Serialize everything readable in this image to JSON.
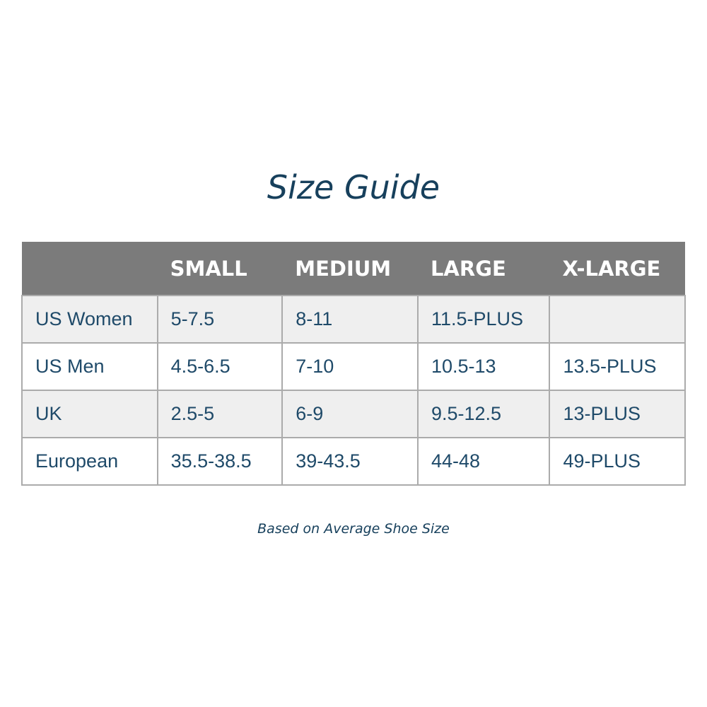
{
  "title": "Size Guide",
  "table": {
    "headers": [
      "",
      "SMALL",
      "MEDIUM",
      "LARGE",
      "X-LARGE"
    ],
    "rows": [
      [
        "US Women",
        "5-7.5",
        "8-11",
        "11.5-PLUS",
        ""
      ],
      [
        "US Men",
        "4.5-6.5",
        "7-10",
        "10.5-13",
        "13.5-PLUS"
      ],
      [
        "UK",
        "2.5-5",
        "6-9",
        "9.5-12.5",
        "13-PLUS"
      ],
      [
        "European",
        "35.5-38.5",
        "39-43.5",
        "44-48",
        "49-PLUS"
      ]
    ]
  },
  "note": "Based on Average Shoe Size"
}
